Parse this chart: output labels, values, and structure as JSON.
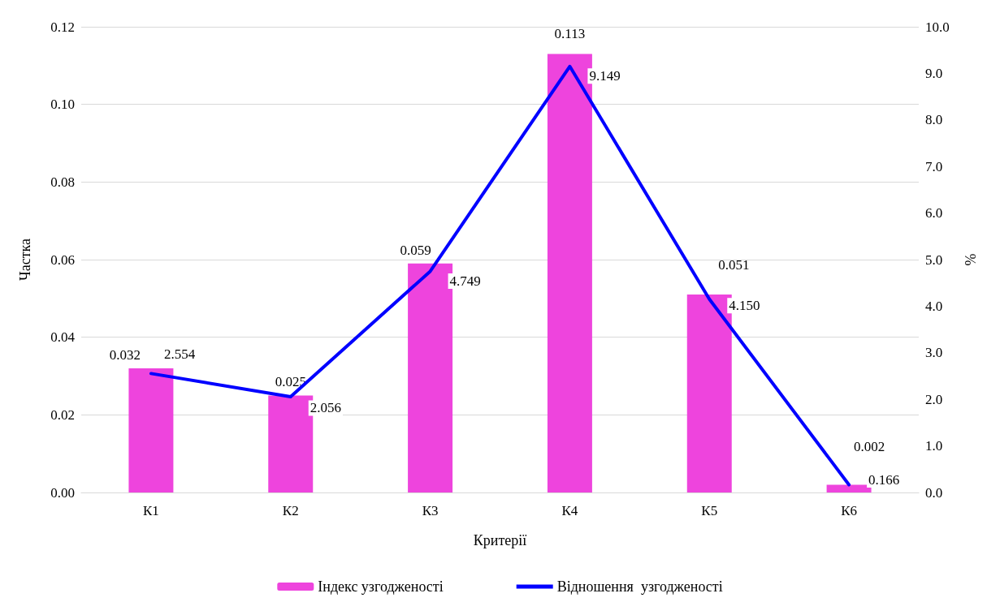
{
  "chart_data": {
    "type": "bar",
    "xlabel": "Критерії",
    "ylabel": "Частка",
    "y2label": "%",
    "categories": [
      "К1",
      "К2",
      "К3",
      "К4",
      "К5",
      "К6"
    ],
    "series": [
      {
        "name": "Індекс узгодженості",
        "color": "#ee44dd",
        "values": [
          0.032,
          0.025,
          0.059,
          0.113,
          0.051,
          0.002
        ],
        "value_labels": [
          "0.032",
          "0.025",
          "0.059",
          "0.113",
          "0.051",
          "0.002"
        ]
      },
      {
        "name": "Відношення  узгодженості",
        "type": "line",
        "axis": "y2",
        "color": "#0000ff",
        "values": [
          2.554,
          2.056,
          4.749,
          9.149,
          4.15,
          0.166
        ],
        "value_labels": [
          "2.554",
          "2.056",
          "4.749",
          "9.149",
          "4.150",
          "0.166"
        ]
      }
    ],
    "ylim": [
      0,
      0.12
    ],
    "yticks": [
      {
        "value": 0,
        "label": "0.00"
      },
      {
        "value": 0.02,
        "label": "0.02"
      },
      {
        "value": 0.04,
        "label": "0.04"
      },
      {
        "value": 0.06,
        "label": "0.06"
      },
      {
        "value": 0.08,
        "label": "0.08"
      },
      {
        "value": 0.1,
        "label": "0.10"
      },
      {
        "value": 0.12,
        "label": "0.12"
      }
    ],
    "y2lim": [
      0,
      10
    ],
    "y2ticks": [
      {
        "value": 0,
        "label": "0.0"
      },
      {
        "value": 1,
        "label": "1.0"
      },
      {
        "value": 2,
        "label": "2.0"
      },
      {
        "value": 3,
        "label": "3.0"
      },
      {
        "value": 4,
        "label": "4.0"
      },
      {
        "value": 5,
        "label": "5.0"
      },
      {
        "value": 6,
        "label": "6.0"
      },
      {
        "value": 7,
        "label": "7.0"
      },
      {
        "value": 8,
        "label": "8.0"
      },
      {
        "value": 9,
        "label": "9.0"
      },
      {
        "value": 10,
        "label": "10.0"
      }
    ],
    "grid": "y",
    "legend": "bottom",
    "marker": "none",
    "line_style": "solid"
  }
}
